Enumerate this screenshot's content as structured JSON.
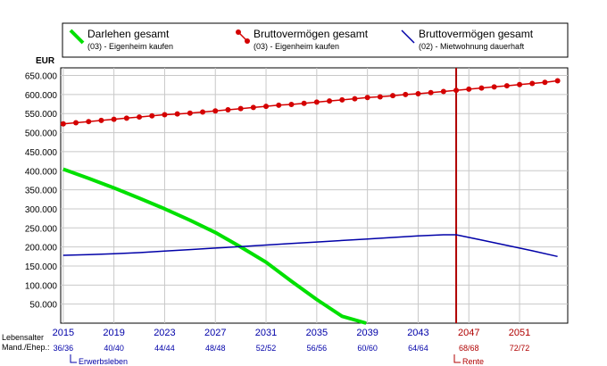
{
  "legend": [
    {
      "title": "Darlehen gesamt",
      "sub": "(03) - Eigenheim kaufen",
      "color": "#00e000",
      "marker": "none"
    },
    {
      "title": "Bruttovermögen gesamt",
      "sub": "(03) - Eigenheim kaufen",
      "color": "#d40000",
      "marker": "dot"
    },
    {
      "title": "Bruttovermögen gesamt",
      "sub": "(02) - Mietwohnung dauerhaft",
      "color": "#0000a8",
      "marker": "none"
    }
  ],
  "bottom_labels": {
    "lebensalter": "Lebensalter",
    "mand_ehep": "Mand./Ehep.:",
    "erwerbsleben": "Erwerbsleben",
    "rente": "Rente"
  },
  "colors": {
    "axis_blue": "#0000a8",
    "retirement_red": "#b00000",
    "grid": "#c8c8c8"
  },
  "chart_data": {
    "type": "line",
    "ylabel": "EUR",
    "ylim": [
      0,
      670000
    ],
    "xlim": [
      2014.8,
      2054.8
    ],
    "yticks": [
      50000,
      100000,
      150000,
      200000,
      250000,
      300000,
      350000,
      400000,
      450000,
      500000,
      550000,
      600000,
      650000
    ],
    "ytick_labels": [
      "50.000",
      "100.000",
      "150.000",
      "200.000",
      "250.000",
      "300.000",
      "350.000",
      "400.000",
      "450.000",
      "500.000",
      "550.000",
      "600.000",
      "650.000"
    ],
    "xticks": [
      2015,
      2019,
      2023,
      2027,
      2031,
      2035,
      2039,
      2043,
      2047,
      2051
    ],
    "age_labels": [
      "36/36",
      "40/40",
      "44/44",
      "48/48",
      "52/52",
      "56/56",
      "60/60",
      "64/64",
      "68/68",
      "72/72"
    ],
    "retirement_year": 2046,
    "grid": true,
    "legend_position": "top",
    "series": [
      {
        "name": "Darlehen gesamt",
        "x": [
          2015,
          2017,
          2019,
          2021,
          2023,
          2025,
          2027,
          2029,
          2031,
          2033,
          2035,
          2037,
          2038.9
        ],
        "y": [
          404000,
          380000,
          355000,
          328000,
          300000,
          270000,
          238000,
          200000,
          160000,
          110000,
          62000,
          18000,
          0
        ]
      },
      {
        "name": "Bruttovermögen gesamt",
        "x": [
          2015,
          2016,
          2017,
          2018,
          2019,
          2020,
          2021,
          2022,
          2023,
          2024,
          2025,
          2026,
          2027,
          2028,
          2029,
          2030,
          2031,
          2032,
          2033,
          2034,
          2035,
          2036,
          2037,
          2038,
          2039,
          2040,
          2041,
          2042,
          2043,
          2044,
          2045,
          2046,
          2047,
          2048,
          2049,
          2050,
          2051,
          2052,
          2053,
          2054
        ],
        "y": [
          523000,
          526000,
          529000,
          532000,
          535000,
          538000,
          541000,
          544000,
          547000,
          549000,
          551000,
          554000,
          557000,
          560000,
          563000,
          566000,
          569000,
          572000,
          574000,
          577000,
          580000,
          583000,
          586000,
          589000,
          592000,
          594000,
          597000,
          600000,
          602000,
          605000,
          608000,
          611000,
          614000,
          617000,
          620000,
          623000,
          626000,
          629000,
          632000,
          636000
        ]
      },
      {
        "name": "Bruttovermögen gesamt",
        "x": [
          2015,
          2017,
          2019,
          2021,
          2023,
          2025,
          2027,
          2029,
          2031,
          2033,
          2035,
          2037,
          2039,
          2041,
          2043,
          2045,
          2046,
          2048,
          2050,
          2052,
          2054
        ],
        "y": [
          178000,
          180000,
          182000,
          185000,
          189000,
          193000,
          197000,
          201000,
          205000,
          209000,
          213000,
          217000,
          221000,
          225000,
          229000,
          232000,
          232000,
          218000,
          204000,
          190000,
          175000
        ]
      }
    ]
  }
}
